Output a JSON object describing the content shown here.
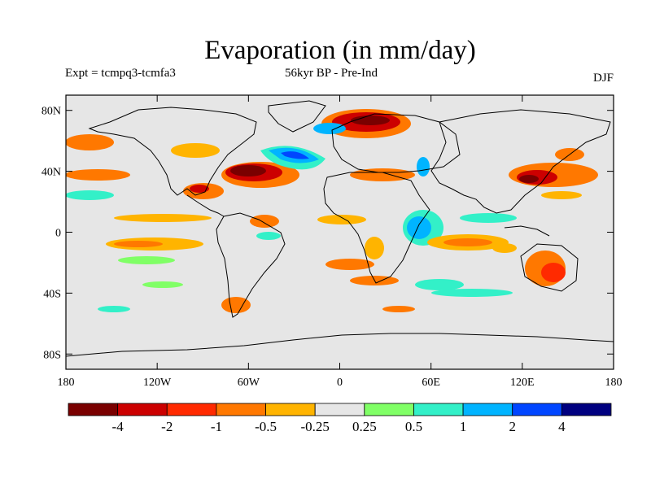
{
  "header": {
    "title": "Evaporation (in mm/day)",
    "expt": "Expt = tcmpq3-tcmfa3",
    "subtitle": "56kyr BP - Pre-Ind",
    "season": "DJF"
  },
  "map": {
    "projection": "cylindrical equidistant",
    "lon_range": [
      -180,
      180
    ],
    "lat_range": [
      -90,
      90
    ],
    "background_color": "#e6e6e6",
    "lat_ticks": [
      "80N",
      "40N",
      "0",
      "40S",
      "80S"
    ],
    "lon_ticks": [
      "180",
      "120W",
      "60W",
      "0",
      "60E",
      "120E",
      "180"
    ]
  },
  "colorbar": {
    "colors": [
      "#7a0000",
      "#cc0000",
      "#ff2a00",
      "#ff7800",
      "#ffb400",
      "#e6e6e6",
      "#80ff66",
      "#33f0c8",
      "#00b4ff",
      "#0046ff",
      "#000080"
    ],
    "labels": [
      "-4",
      "-2",
      "-1",
      "-0.5",
      "-0.25",
      "0.25",
      "0.5",
      "1",
      "2",
      "4"
    ]
  }
}
